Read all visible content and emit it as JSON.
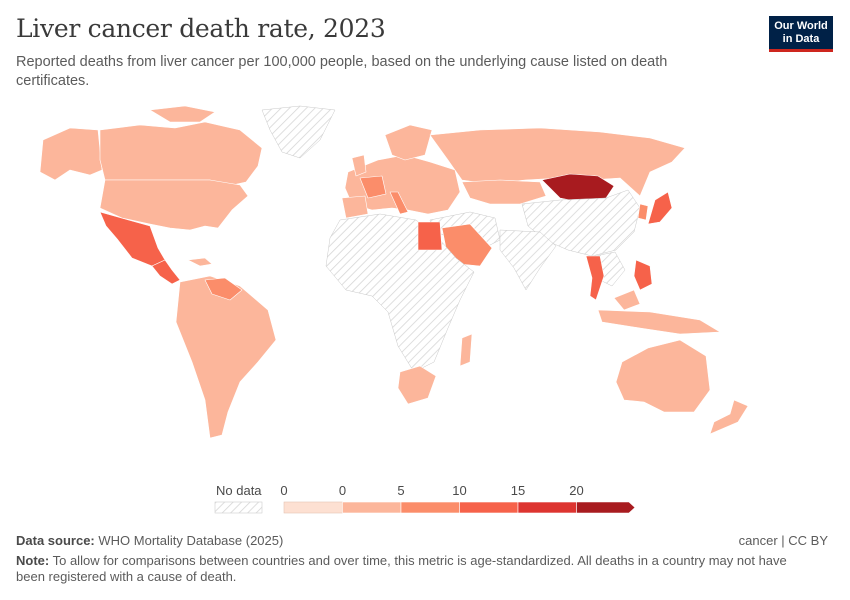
{
  "header": {
    "title": "Liver cancer death rate, 2023",
    "subtitle": "Reported deaths from liver cancer per 100,000 people, based on the underlying cause listed on death certificates."
  },
  "logo": {
    "line1": "Our World",
    "line2": "in Data"
  },
  "colors": {
    "no_data_hatch": "#d6d6d6",
    "bin_0": "#fde0d2",
    "bin_1": "#fcb69b",
    "bin_2": "#fb8d6a",
    "bin_3": "#f6624a",
    "bin_4": "#dd3430",
    "bin_5": "#a81b1f",
    "border": "#ffffff"
  },
  "legend": {
    "no_data_label": "No data",
    "ticks": [
      "0",
      "0",
      "5",
      "10",
      "15",
      "20"
    ]
  },
  "map_data": {
    "metric": "Liver cancer death rate",
    "unit": "per 100,000 people",
    "year": 2023,
    "regions": [
      {
        "name": "Canada",
        "bin": 1
      },
      {
        "name": "United States",
        "bin": 1
      },
      {
        "name": "Alaska",
        "bin": 1
      },
      {
        "name": "Greenland",
        "bin": -1
      },
      {
        "name": "Mexico",
        "bin": 3
      },
      {
        "name": "Central America",
        "bin": 3
      },
      {
        "name": "South America",
        "bin": 1
      },
      {
        "name": "Venezuela",
        "bin": 2
      },
      {
        "name": "Europe",
        "bin": 1
      },
      {
        "name": "France",
        "bin": 2
      },
      {
        "name": "Italy",
        "bin": 2
      },
      {
        "name": "Russia",
        "bin": 1
      },
      {
        "name": "Kazakhstan",
        "bin": 1
      },
      {
        "name": "Mongolia",
        "bin": 5
      },
      {
        "name": "China",
        "bin": -1
      },
      {
        "name": "Japan",
        "bin": 3
      },
      {
        "name": "South Korea",
        "bin": 2
      },
      {
        "name": "Thailand",
        "bin": 3
      },
      {
        "name": "Philippines",
        "bin": 3
      },
      {
        "name": "Egypt",
        "bin": 3
      },
      {
        "name": "Saudi Arabia",
        "bin": 2
      },
      {
        "name": "Africa",
        "bin": -1
      },
      {
        "name": "South Africa",
        "bin": 1
      },
      {
        "name": "Middle East",
        "bin": -1
      },
      {
        "name": "India",
        "bin": -1
      },
      {
        "name": "Southeast Asia",
        "bin": -1
      },
      {
        "name": "Australia",
        "bin": 1
      },
      {
        "name": "New Zealand",
        "bin": 1
      }
    ]
  },
  "footer": {
    "source_label": "Data source:",
    "source_value": "WHO Mortality Database (2025)",
    "license": "cancer | CC BY",
    "note_label": "Note:",
    "note_value": "To allow for comparisons between countries and over time, this metric is age-standardized. All deaths in a country may not have been registered with a cause of death."
  }
}
